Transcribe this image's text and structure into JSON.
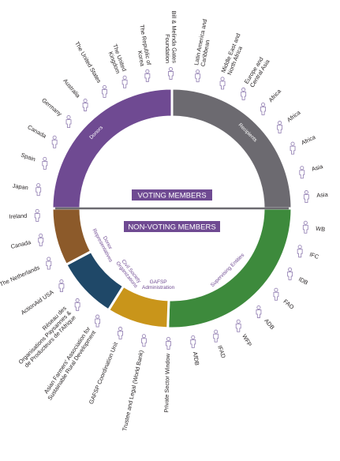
{
  "header_voting": "VOTING MEMBERS",
  "header_nonvoting": "NON-VOTING MEMBERS",
  "colors": {
    "donors": "#6f4a92",
    "recipients": "#6c6a70",
    "supervising": "#3d8a3c",
    "gafsp_admin": "#c9951a",
    "civil_society": "#1f4868",
    "donor_reps": "#8c5a2a",
    "label_purple": "#6f4a92",
    "person_outline": "#9a88b8"
  },
  "segments": [
    {
      "key": "donors",
      "label": "Donors"
    },
    {
      "key": "recipients",
      "label": "Recipients"
    },
    {
      "key": "supervising",
      "label": "Supervising Entities"
    },
    {
      "key": "gafsp_admin",
      "label_lines": [
        "GAFSP",
        "Administration"
      ]
    },
    {
      "key": "civil_society",
      "label_lines": [
        "Civil Society",
        "Organizations"
      ]
    },
    {
      "key": "donor_reps",
      "label_lines": [
        "Donor",
        "Representatives"
      ]
    }
  ],
  "members": [
    {
      "name": "Bill & Melinda Gates Foundation",
      "lines": [
        "Bill & Melinda Gates",
        "Foundation"
      ],
      "angle": 90.5
    },
    {
      "name": "Latin America and Caribbean",
      "lines": [
        "Latin America and",
        "Caribbean"
      ],
      "angle": 79
    },
    {
      "name": "Middle East and North Africa",
      "lines": [
        "Middle East and",
        "North Africa"
      ],
      "angle": 68
    },
    {
      "name": "Europe and Central Asia",
      "lines": [
        "Europe and",
        "Central Asia"
      ],
      "angle": 58
    },
    {
      "name": "Africa (1)",
      "lines": [
        "Africa"
      ],
      "angle": 47.5
    },
    {
      "name": "Africa (2)",
      "lines": [
        "Africa"
      ],
      "angle": 37
    },
    {
      "name": "Africa (3)",
      "lines": [
        "Africa"
      ],
      "angle": 26.5
    },
    {
      "name": "Asia (1)",
      "lines": [
        "Asia"
      ],
      "angle": 15.5
    },
    {
      "name": "Asia (2)",
      "lines": [
        "Asia"
      ],
      "angle": 5
    },
    {
      "name": "WB",
      "lines": [
        "WB"
      ],
      "angle": -8
    },
    {
      "name": "IFC",
      "lines": [
        "IFC"
      ],
      "angle": -18.5
    },
    {
      "name": "IDB",
      "lines": [
        "IDB"
      ],
      "angle": -29
    },
    {
      "name": "FAO",
      "lines": [
        "FAO"
      ],
      "angle": -39.5
    },
    {
      "name": "ADB",
      "lines": [
        "ADB"
      ],
      "angle": -50
    },
    {
      "name": "WFP",
      "lines": [
        "WFP"
      ],
      "angle": -60.5
    },
    {
      "name": "IFAD",
      "lines": [
        "IFAD"
      ],
      "angle": -71
    },
    {
      "name": "AfDB",
      "lines": [
        "AfDB"
      ],
      "angle": -81
    },
    {
      "name": "Private Sector Window",
      "lines": [
        "Private Sector Window"
      ],
      "angle": -91.5
    },
    {
      "name": "Trustee and Legal (World Bank)",
      "lines": [
        "Trustee and Legal (World Bank)"
      ],
      "angle": -102
    },
    {
      "name": "GAFSP Coordination Unit",
      "lines": [
        "GAFSP Coordination Unit"
      ],
      "angle": -112.5
    },
    {
      "name": "Asian Farmers' Association for Sustainable Rural Development",
      "lines": [
        "Asian Farmers' Association for",
        "Sustainable Rural Development"
      ],
      "angle": -123.5
    },
    {
      "name": "Réseau des Organisations Paysannes & de Producteurs de l'Afrique",
      "lines": [
        "Réseau des",
        "Organisations Paysannes &",
        "de Producteurs de l'Afrique"
      ],
      "angle": -134.5
    },
    {
      "name": "ActionAid USA",
      "lines": [
        "ActionAid USA"
      ],
      "angle": -145
    },
    {
      "name": "The Netherlands",
      "lines": [
        "The Netherlands"
      ],
      "angle": -156
    },
    {
      "name": "Canada (2)",
      "lines": [
        "Canada"
      ],
      "angle": -166.5
    },
    {
      "name": "Ireland",
      "lines": [
        "Ireland"
      ],
      "angle": -177
    },
    {
      "name": "Japan",
      "lines": [
        "Japan"
      ],
      "angle": 172
    },
    {
      "name": "Spain",
      "lines": [
        "Spain"
      ],
      "angle": 160.5
    },
    {
      "name": "Canada (1)",
      "lines": [
        "Canada"
      ],
      "angle": 150.5
    },
    {
      "name": "Germany",
      "lines": [
        "Germany"
      ],
      "angle": 140
    },
    {
      "name": "Australia",
      "lines": [
        "Australia"
      ],
      "angle": 130
    },
    {
      "name": "The United States",
      "lines": [
        "The United States"
      ],
      "angle": 120
    },
    {
      "name": "The United Kingdom",
      "lines": [
        "The United",
        "Kingdom"
      ],
      "angle": 110.5
    },
    {
      "name": "The Republic of Korea",
      "lines": [
        "The Republic of",
        "Korea"
      ],
      "angle": 100.5
    }
  ]
}
